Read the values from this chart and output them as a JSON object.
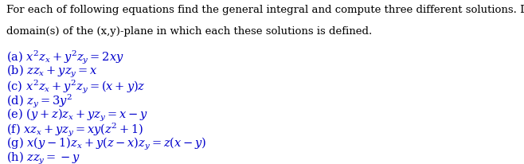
{
  "title_line1": "For each of following equations find the general integral and compute three different solutions. Describe the",
  "title_line2": "domain(s) of the (x,y)-plane in which each these solutions is defined.",
  "items": [
    "(a) $x^2z_x + y^2z_y = 2xy$",
    "(b) $zz_x + yz_y = x$",
    "(c) $x^2z_x + y^2z_y = (x+y)z$",
    "(d) $z_y = 3y^2$",
    "(e) $(y+z)z_x + yz_y = x - y$",
    "(f) $xz_x + yz_y = xy(z^2+1)$",
    "(g) $x(y-1)z_x + y(z-x)z_y = z(x-y)$",
    "(h) $zz_y = -y$"
  ],
  "text_color": "#0000cc",
  "title_color": "#000000",
  "bg_color": "#ffffff",
  "title_fontsize": 9.5,
  "item_fontsize": 10.5,
  "figwidth": 6.58,
  "figheight": 2.06,
  "dpi": 100
}
